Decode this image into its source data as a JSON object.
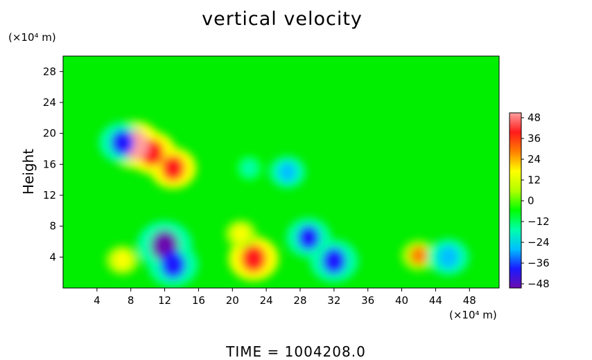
{
  "chart_data": {
    "type": "heatmap",
    "title": "vertical velocity",
    "xlabel": "",
    "ylabel": "Height",
    "x_unit": "(×10⁴ m)",
    "y_unit": "(×10⁴ m)",
    "x_ticks": [
      4,
      8,
      12,
      16,
      20,
      24,
      28,
      32,
      36,
      40,
      44,
      48
    ],
    "y_ticks": [
      4,
      8,
      12,
      16,
      20,
      24,
      28
    ],
    "xlim": [
      0,
      51.5
    ],
    "ylim": [
      0,
      30
    ],
    "colorbar": {
      "ticks": [
        48,
        36,
        24,
        12,
        0,
        -12,
        -24,
        -36,
        -48
      ],
      "range": [
        -48,
        48
      ],
      "colors": [
        "#6a0dad",
        "#1a1aff",
        "#00bfff",
        "#00ffaa",
        "#00ff00",
        "#b0ff00",
        "#ffff00",
        "#ff8000",
        "#ff1a1a",
        "#ff9f9f"
      ]
    },
    "features": [
      {
        "x": 22.5,
        "y": 3.8,
        "value": 40,
        "label": "updraft"
      },
      {
        "x": 21.0,
        "y": 7.0,
        "value": 18,
        "label": "updraft"
      },
      {
        "x": 7.0,
        "y": 3.6,
        "value": 20,
        "label": "updraft"
      },
      {
        "x": 42.0,
        "y": 4.2,
        "value": 22,
        "label": "updraft"
      },
      {
        "x": 12.0,
        "y": 5.5,
        "value": -46,
        "label": "downdraft"
      },
      {
        "x": 13.0,
        "y": 3.0,
        "value": -40,
        "label": "downdraft"
      },
      {
        "x": 32.0,
        "y": 3.5,
        "value": -38,
        "label": "downdraft"
      },
      {
        "x": 29.0,
        "y": 6.5,
        "value": -34,
        "label": "downdraft"
      },
      {
        "x": 45.5,
        "y": 4.0,
        "value": -30,
        "label": "downdraft"
      },
      {
        "x": 10.5,
        "y": 17.5,
        "value": 38,
        "label": "updraft"
      },
      {
        "x": 13.0,
        "y": 15.5,
        "value": 36,
        "label": "updraft"
      },
      {
        "x": 8.5,
        "y": 18.5,
        "value": 44,
        "label": "updraft"
      },
      {
        "x": 7.0,
        "y": 18.8,
        "value": -36,
        "label": "downdraft"
      },
      {
        "x": 26.5,
        "y": 15.0,
        "value": -24,
        "label": "downdraft"
      },
      {
        "x": 22.0,
        "y": 15.5,
        "value": -18,
        "label": "downdraft"
      }
    ]
  },
  "labels": {
    "title": "vertical velocity",
    "y_unit": "(×10⁴ m)",
    "x_unit": "(×10⁴ m)",
    "ylabel": "Height",
    "time": "TIME  =  1004208.0"
  }
}
